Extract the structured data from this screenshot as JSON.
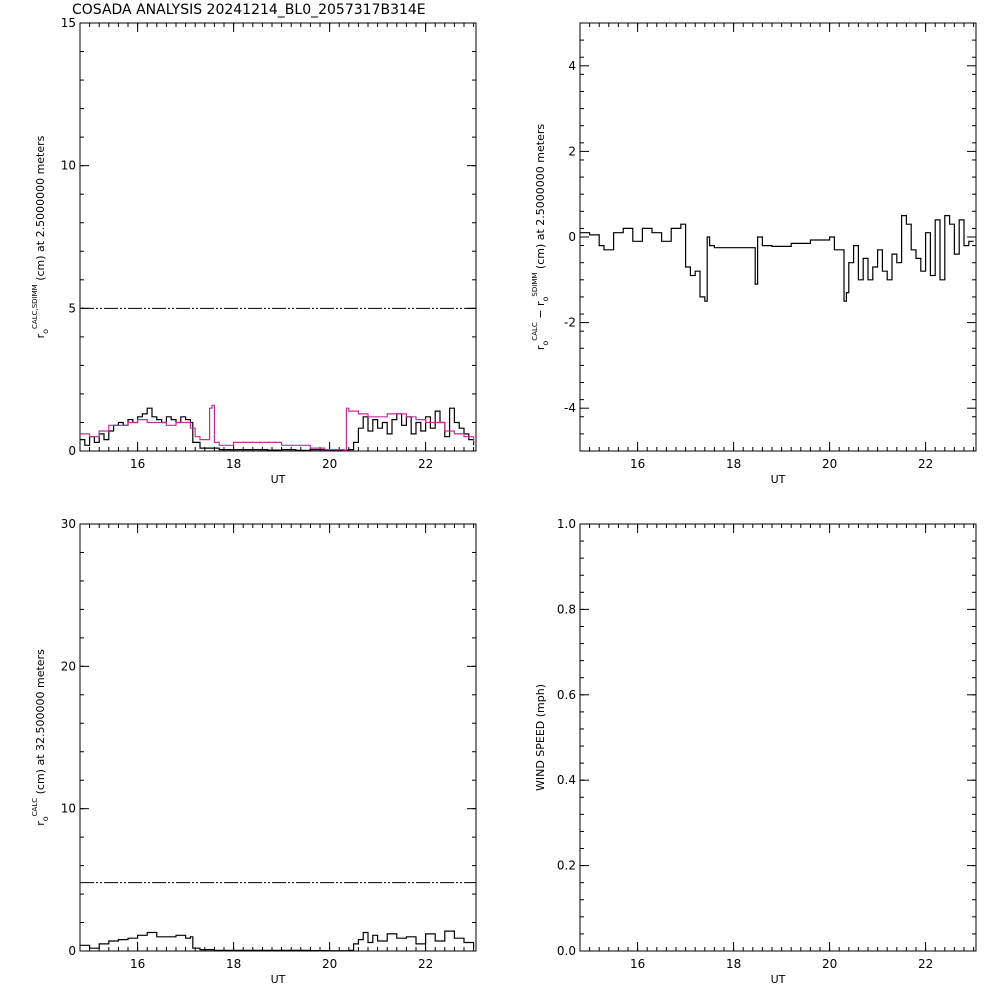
{
  "title": "COSADA ANALYSIS 20241214_BL0_2057317B314E",
  "colors": {
    "axis": "#000000",
    "series_black": "#000000",
    "series_magenta": "#c0309a",
    "threshold": "#000000"
  },
  "chart_data": [
    {
      "id": "top-left",
      "type": "line",
      "xlabel": "UT",
      "ylabel": {
        "pre": "r",
        "sub": "o",
        "sup": "CALC,SDIMM",
        "post": " (cm)  at  2.5000000 meters"
      },
      "xlim": [
        14.8,
        23.05
      ],
      "ylim": [
        0,
        15
      ],
      "xticks": [
        16,
        18,
        20,
        22
      ],
      "yticks": [
        0,
        5,
        10,
        15
      ],
      "threshold": 5,
      "series": [
        {
          "color": "#000000",
          "x": [
            14.8,
            14.9,
            15.0,
            15.1,
            15.2,
            15.3,
            15.4,
            15.5,
            15.6,
            15.7,
            15.8,
            15.9,
            16.0,
            16.1,
            16.2,
            16.3,
            16.4,
            16.5,
            16.6,
            16.7,
            16.8,
            16.9,
            17.0,
            17.1,
            17.15,
            17.3,
            17.5,
            17.7,
            18.0,
            18.3,
            18.5,
            18.7,
            19.0,
            19.3,
            19.6,
            19.9,
            20.2,
            20.4,
            20.5,
            20.6,
            20.7,
            20.8,
            20.9,
            21.0,
            21.1,
            21.2,
            21.3,
            21.4,
            21.5,
            21.6,
            21.7,
            21.8,
            21.9,
            22.0,
            22.1,
            22.2,
            22.3,
            22.4,
            22.5,
            22.6,
            22.7,
            22.8,
            22.9,
            23.0
          ],
          "y": [
            0.4,
            0.2,
            0.5,
            0.3,
            0.6,
            0.4,
            0.7,
            0.9,
            1.0,
            0.9,
            1.1,
            1.0,
            1.2,
            1.3,
            1.5,
            1.2,
            1.1,
            1.0,
            1.2,
            1.1,
            1.0,
            1.2,
            1.1,
            1.0,
            0.3,
            0.1,
            0.1,
            0.05,
            0.05,
            0.05,
            0.05,
            0.03,
            0.05,
            0.02,
            0.05,
            0.02,
            0.03,
            0.05,
            0.3,
            0.8,
            1.2,
            0.7,
            1.1,
            0.8,
            1.0,
            0.6,
            1.1,
            1.3,
            0.9,
            1.2,
            0.6,
            1.0,
            0.7,
            1.2,
            0.8,
            1.4,
            1.0,
            0.5,
            1.5,
            1.0,
            0.8,
            0.6,
            0.4,
            0.2
          ]
        },
        {
          "color": "#c0309a",
          "x": [
            14.8,
            15.0,
            15.2,
            15.4,
            15.6,
            15.8,
            16.0,
            16.2,
            16.4,
            16.6,
            16.8,
            17.0,
            17.1,
            17.2,
            17.3,
            17.4,
            17.5,
            17.55,
            17.6,
            17.7,
            17.9,
            18.0,
            18.3,
            18.5,
            18.7,
            19.0,
            19.3,
            19.6,
            19.9,
            20.3,
            20.35,
            20.4,
            20.45,
            20.6,
            20.8,
            21.0,
            21.2,
            21.4,
            21.6,
            21.8,
            22.0,
            22.2,
            22.4,
            22.6,
            22.8,
            23.0
          ],
          "y": [
            0.6,
            0.5,
            0.7,
            0.9,
            0.9,
            1.0,
            1.1,
            1.0,
            1.0,
            0.9,
            1.0,
            1.0,
            0.8,
            0.5,
            0.4,
            0.4,
            1.5,
            1.6,
            0.3,
            0.2,
            0.2,
            0.3,
            0.3,
            0.3,
            0.3,
            0.2,
            0.2,
            0.1,
            0.05,
            0.03,
            1.5,
            1.4,
            1.4,
            1.3,
            1.2,
            1.2,
            1.3,
            1.3,
            1.2,
            1.1,
            1.0,
            1.0,
            0.7,
            0.6,
            0.5,
            0.3
          ]
        }
      ]
    },
    {
      "id": "top-right",
      "type": "line",
      "xlabel": "UT",
      "ylabel": {
        "pre": "r",
        "sub": "o",
        "sup": "CALC",
        "mid": "  −  r",
        "sub2": "o",
        "sup2": "SDIMM",
        "post": " (cm)  at  2.5000000 meters"
      },
      "xlim": [
        14.8,
        23.05
      ],
      "ylim": [
        -5,
        5
      ],
      "xticks": [
        16,
        18,
        20,
        22
      ],
      "yticks": [
        -4,
        -2,
        0,
        2,
        4
      ],
      "series": [
        {
          "color": "#000000",
          "x": [
            14.8,
            15.0,
            15.2,
            15.3,
            15.5,
            15.7,
            15.9,
            16.1,
            16.3,
            16.5,
            16.7,
            16.9,
            17.0,
            17.1,
            17.2,
            17.3,
            17.4,
            17.45,
            17.5,
            17.6,
            17.7,
            17.8,
            18.0,
            18.3,
            18.45,
            18.5,
            18.55,
            18.6,
            18.8,
            19.2,
            19.6,
            20.0,
            20.1,
            20.3,
            20.35,
            20.4,
            20.5,
            20.6,
            20.7,
            20.8,
            20.9,
            21.0,
            21.1,
            21.2,
            21.3,
            21.4,
            21.5,
            21.6,
            21.7,
            21.8,
            21.9,
            22.0,
            22.1,
            22.2,
            22.3,
            22.4,
            22.5,
            22.6,
            22.7,
            22.8,
            22.9,
            23.0
          ],
          "y": [
            0.1,
            0.05,
            -0.2,
            -0.3,
            0.1,
            0.2,
            -0.1,
            0.2,
            0.1,
            -0.1,
            0.2,
            0.3,
            -0.7,
            -0.9,
            -0.8,
            -1.4,
            -1.5,
            0.0,
            -0.2,
            -0.25,
            -0.25,
            -0.25,
            -0.25,
            -0.25,
            -1.1,
            0.0,
            0.0,
            -0.2,
            -0.22,
            -0.15,
            -0.07,
            0.0,
            -0.3,
            -1.5,
            -1.3,
            -0.6,
            -0.2,
            -1.0,
            -0.5,
            -1.0,
            -0.7,
            -0.3,
            -0.8,
            -1.0,
            -0.4,
            -0.6,
            0.5,
            0.3,
            -0.3,
            -0.5,
            -0.8,
            0.1,
            -0.9,
            0.4,
            -1.0,
            0.5,
            0.3,
            -0.4,
            0.4,
            -0.2,
            -0.1,
            -0.1
          ]
        }
      ]
    },
    {
      "id": "bottom-left",
      "type": "line",
      "xlabel": "UT",
      "ylabel": {
        "pre": "r",
        "sub": "o",
        "sup": "CALC",
        "post": " (cm)  at  32.500000 meters"
      },
      "xlim": [
        14.8,
        23.05
      ],
      "ylim": [
        0,
        30
      ],
      "xticks": [
        16,
        18,
        20,
        22
      ],
      "yticks": [
        0,
        10,
        20,
        30
      ],
      "threshold": 4.8,
      "series": [
        {
          "color": "#000000",
          "x": [
            14.8,
            15.0,
            15.2,
            15.4,
            15.6,
            15.8,
            16.0,
            16.2,
            16.4,
            16.6,
            16.8,
            17.0,
            17.1,
            17.15,
            17.3,
            17.6,
            18.0,
            18.4,
            18.8,
            19.2,
            19.6,
            20.0,
            20.4,
            20.5,
            20.6,
            20.7,
            20.8,
            20.9,
            21.0,
            21.2,
            21.4,
            21.6,
            21.8,
            22.0,
            22.2,
            22.4,
            22.6,
            22.8,
            23.0
          ],
          "y": [
            0.4,
            0.2,
            0.5,
            0.7,
            0.8,
            0.9,
            1.1,
            1.3,
            1.0,
            1.0,
            1.1,
            0.9,
            1.0,
            0.2,
            0.1,
            0.05,
            0.05,
            0.05,
            0.05,
            0.05,
            0.03,
            0.02,
            0.05,
            0.5,
            0.8,
            1.3,
            0.6,
            1.1,
            0.7,
            1.2,
            0.9,
            1.0,
            0.5,
            1.2,
            0.7,
            1.4,
            0.9,
            0.6,
            0.2
          ]
        }
      ]
    },
    {
      "id": "bottom-right",
      "type": "line",
      "xlabel": "UT",
      "ylabel": {
        "post": "WIND SPEED  (mph)"
      },
      "xlim": [
        14.8,
        23.05
      ],
      "ylim": [
        0.0,
        1.0
      ],
      "xticks": [
        16,
        18,
        20,
        22
      ],
      "yticks": [
        0.0,
        0.2,
        0.4,
        0.6,
        0.8,
        1.0
      ],
      "series": []
    }
  ]
}
